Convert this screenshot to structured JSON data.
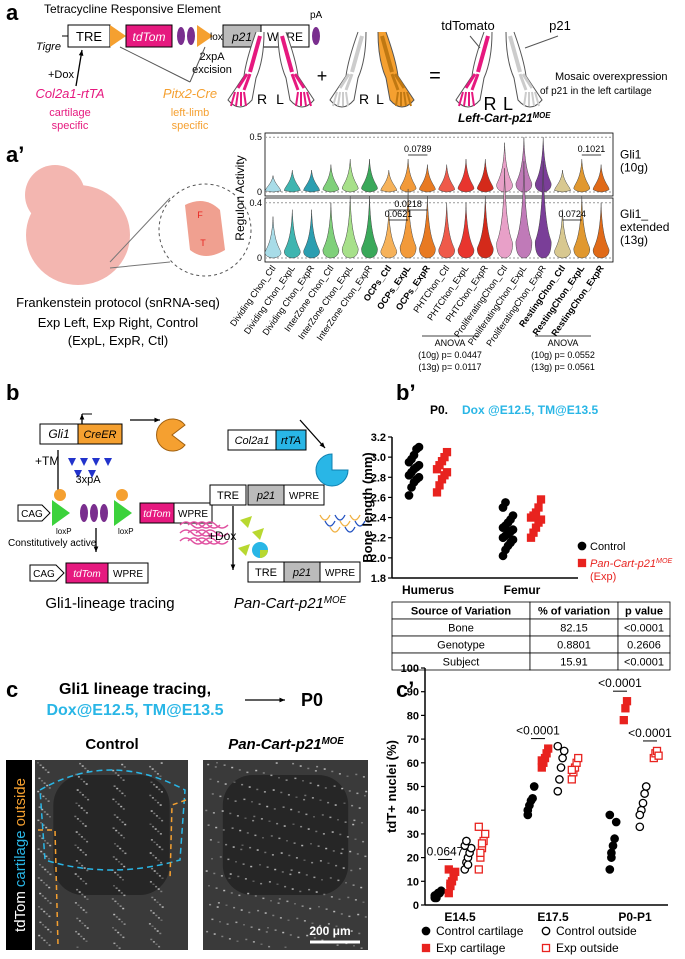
{
  "figure": {
    "a": {
      "label": "a",
      "tre_title": "Tetracycline Responsive Element",
      "tigre": "Tigre",
      "tre": "TRE",
      "loxp1": "loxP",
      "tdtom": "tdTom",
      "loxp2": "loxP",
      "p21": "p21",
      "wpre": "WPRE",
      "pa": "pA",
      "pa2": "2xpA",
      "excision": "excision",
      "dox": "+Dox",
      "col2a1": "Col2a1-rtTA",
      "col2a1_note": "cartilage",
      "col2a1_note2": "specific",
      "pitx2": "Pitx2-Cre",
      "pitx2_note": "left-limb",
      "pitx2_note2": "specific",
      "tdtomato": "tdTomato",
      "p21_label": "p21",
      "limbs": [
        "R",
        "L",
        "R",
        "L",
        "R",
        "L"
      ],
      "plus": "+",
      "equals": "=",
      "mosaic1": "Mosaic overexpression",
      "mosaic2": "of p21 in the left cartilage",
      "model": "Left-Cart-p21",
      "model_sup": "MOE"
    },
    "a2": {
      "label": "a’",
      "embryo_f": "F",
      "embryo_t": "T",
      "protocol": "Frankenstein protocol (snRNA-seq)",
      "groups": "Exp Left, Exp Right, Control",
      "groups_abbr": "(ExpL, ExpR, Ctl)",
      "anova": [
        {
          "title": "ANOVA",
          "p10": "(10g) p= 0.0447",
          "p13": "(13g) p= 0.0117"
        },
        {
          "title": "ANOVA",
          "p10": "(10g) p= 0.0552",
          "p13": "(13g) p= 0.0561"
        }
      ]
    },
    "b": {
      "label": "b",
      "gli1": "Gli1",
      "creer": "CreER",
      "tm": "+TM",
      "pa3": "3xpA",
      "cag1": "CAG",
      "loxp1": "loxP",
      "loxp2": "loxP",
      "tdtom1": "tdTom",
      "wpre1": "WPRE",
      "const": "Constitutively active",
      "cag2": "CAG",
      "tdtom2": "tdTom",
      "wpre2": "WPRE",
      "left_title": "Gli1-lineage tracing",
      "col2a1": "Col2a1",
      "rtta": "rtTA",
      "tre1": "TRE",
      "p21a": "p21",
      "wpre3": "WPRE",
      "dox": "+Dox",
      "tre2": "TRE",
      "p21b": "p21",
      "wpre4": "WPRE",
      "right_title": "Pan-Cart-p21",
      "right_sup": "MOE"
    },
    "b2": {
      "label": "b’"
    },
    "table": {
      "header": [
        "Source of Variation",
        "% of variation",
        "p value"
      ],
      "rows": [
        [
          "Bone",
          "82.15",
          "<0.0001"
        ],
        [
          "Genotype",
          "0.8801",
          "0.2606"
        ],
        [
          "Subject",
          "15.91",
          "<0.0001"
        ]
      ]
    },
    "c": {
      "label": "c",
      "title1": "Gli1 lineage tracing,",
      "title2": "Dox@E12.5, TM@E13.5",
      "p0": "P0",
      "control": "Control",
      "exp": "Pan-Cart-p21",
      "exp_sup": "MOE",
      "side": [
        {
          "text": "tdTom",
          "color": "#ffffff"
        },
        {
          "text": "cartilage",
          "color": "#29b6e6"
        },
        {
          "text": "outside",
          "color": "#f5a030"
        }
      ],
      "scale": "200 μm"
    },
    "c2": {
      "label": "c’"
    }
  },
  "chart_data": [
    {
      "type": "violin",
      "ylabel": "Regulon Activity",
      "categories": [
        "Dividing Chon_Ctl",
        "Dividing Chon_ExpL",
        "Dividing Chon_ExpR",
        "InterZone Chon_Ctl",
        "InterZone Chon_ExpL",
        "InterZone Chon_ExpR",
        "OCPs_Ctl",
        "OCPs_ExpL",
        "OCPs_ExpR",
        "PHTChon_Ctl",
        "PHTChon_ExpL",
        "PHTChon_ExpR",
        "ProliferatingChon_Ctl",
        "ProliferatingChon_ExpL",
        "ProliferatingChon_ExpR",
        "RestingChon_Ctl",
        "RestingChon_ExpL",
        "RestingChon_ExpR"
      ],
      "bold": [
        false,
        false,
        false,
        false,
        false,
        false,
        true,
        true,
        true,
        false,
        false,
        false,
        false,
        false,
        false,
        true,
        true,
        true
      ],
      "colors": [
        "#a8dce8",
        "#3fb5b0",
        "#2c9eb0",
        "#7fd07a",
        "#a7e08a",
        "#3aa85a",
        "#f6b25a",
        "#f29a3a",
        "#e87a22",
        "#ef5a4a",
        "#e8352e",
        "#d42a1a",
        "#e8a0c8",
        "#c07ab8",
        "#7a3e98",
        "#d8c890",
        "#e09830",
        "#e06a18"
      ],
      "panels": [
        {
          "name": [
            "Gli1",
            "(10g)"
          ],
          "ylim": [
            0,
            0.52
          ],
          "yticks": [
            0,
            0.5
          ],
          "values": [
            0.02,
            0.03,
            0.03,
            0.04,
            0.05,
            0.05,
            0.03,
            0.05,
            0.04,
            0.04,
            0.05,
            0.05,
            0.08,
            0.09,
            0.09,
            0.03,
            0.05,
            0.04
          ],
          "annotations": [
            {
              "text": "0.0789",
              "from": "OCPs_ExpL",
              "to": "OCPs_ExpR"
            },
            {
              "text": "0.1021",
              "from": "RestingChon_ExpL",
              "to": "RestingChon_ExpR"
            }
          ]
        },
        {
          "name": [
            "Gli1_",
            "extended",
            "(13g)"
          ],
          "ylim": [
            0,
            0.42
          ],
          "yticks": [
            0,
            0.4
          ],
          "values": [
            0.05,
            0.06,
            0.06,
            0.07,
            0.08,
            0.08,
            0.06,
            0.09,
            0.08,
            0.07,
            0.07,
            0.08,
            0.12,
            0.13,
            0.13,
            0.06,
            0.08,
            0.07
          ],
          "annotations": [
            {
              "text": "0.0621",
              "from": "OCPs_Ctl",
              "to": "OCPs_ExpL"
            },
            {
              "text": "0.0218",
              "from": "OCPs_Ctl",
              "to": "OCPs_ExpR"
            },
            {
              "text": "0.0724",
              "from": "RestingChon_Ctl",
              "to": "RestingChon_ExpL"
            }
          ]
        }
      ]
    },
    {
      "type": "dot",
      "title": "P0.",
      "subtitle": "Dox @E12.5, TM@E13.5",
      "subtitle_color": "#29b6e6",
      "ylabel": "Bone length (mm)",
      "categories": [
        "Humerus",
        "Femur"
      ],
      "ylim": [
        1.8,
        3.2
      ],
      "yticks": [
        1.8,
        {
          "value": 2,
          "label": "2.0"
        },
        2.2,
        2.4,
        2.6,
        2.8,
        {
          "value": 3,
          "label": "3.0"
        },
        3.2
      ],
      "series": [
        {
          "name": "Control",
          "color": "#000000",
          "marker": "circle",
          "filled": true,
          "values": [
            [
              2.62,
              2.7,
              2.75,
              2.78,
              2.8,
              2.82,
              2.85,
              2.88,
              2.9,
              2.92,
              2.95,
              2.98,
              3.02,
              3.08,
              3.1
            ],
            [
              2.02,
              2.08,
              2.12,
              2.15,
              2.18,
              2.2,
              2.22,
              2.24,
              2.26,
              2.28,
              2.3,
              2.32,
              2.35,
              2.38,
              2.42,
              2.5,
              2.55
            ]
          ]
        },
        {
          "name": "Pan-Cart-p21",
          "name_sup": "MOE",
          "name_note": "(Exp)",
          "color": "#e8231f",
          "marker": "square",
          "filled": true,
          "values": [
            [
              2.65,
              2.72,
              2.78,
              2.82,
              2.85,
              2.88,
              2.92,
              2.96,
              3.0,
              3.05
            ],
            [
              2.2,
              2.25,
              2.3,
              2.35,
              2.38,
              2.4,
              2.42,
              2.45,
              2.5,
              2.58
            ]
          ]
        }
      ]
    },
    {
      "type": "dot",
      "ylabel": "tdT+ nuclei (%)",
      "categories": [
        "E14.5",
        "E17.5",
        "P0-P1"
      ],
      "ylim": [
        0,
        100
      ],
      "yticks": [
        0,
        10,
        20,
        30,
        40,
        50,
        60,
        70,
        80,
        90,
        100
      ],
      "series": [
        {
          "name": "Control cartilage",
          "color": "#000000",
          "marker": "circle",
          "filled": true,
          "values": [
            [
              3,
              4,
              5,
              5,
              6,
              4,
              3
            ],
            [
              38,
              42,
              44,
              45,
              50,
              40
            ],
            [
              15,
              22,
              25,
              28,
              35,
              38,
              20
            ]
          ]
        },
        {
          "name": "Exp cartilage",
          "color": "#e8231f",
          "marker": "square",
          "filled": true,
          "values": [
            [
              5,
              8,
              10,
              12,
              14,
              15,
              9
            ],
            [
              58,
              60,
              62,
              64,
              66,
              61
            ],
            [
              78,
              83,
              86
            ]
          ]
        },
        {
          "name": "Control outside",
          "color": "#000000",
          "marker": "circle",
          "filled": false,
          "values": [
            [
              15,
              18,
              20,
              22,
              24,
              25,
              27,
              17
            ],
            [
              48,
              53,
              58,
              62,
              65,
              67
            ],
            [
              33,
              40,
              43,
              47,
              50,
              38
            ]
          ]
        },
        {
          "name": "Exp outside",
          "color": "#e8231f",
          "marker": "square",
          "filled": false,
          "values": [
            [
              15,
              20,
              24,
              27,
              30,
              33,
              22,
              26
            ],
            [
              53,
              56,
              58,
              60,
              62,
              57
            ],
            [
              62,
              64,
              65,
              63
            ]
          ]
        }
      ],
      "annotations": [
        {
          "text": "0.0647",
          "category": "E14.5",
          "from": "Control cartilage",
          "to": "Exp cartilage"
        },
        {
          "text": "<0.0001",
          "category": "E17.5",
          "from": "Control cartilage",
          "to": "Exp cartilage"
        },
        {
          "text": "<0.0001",
          "category": "P0-P1",
          "from": "Control cartilage",
          "to": "Exp cartilage"
        },
        {
          "text": "<0.0001",
          "category": "P0-P1",
          "from": "Control outside",
          "to": "Exp outside"
        }
      ]
    }
  ]
}
